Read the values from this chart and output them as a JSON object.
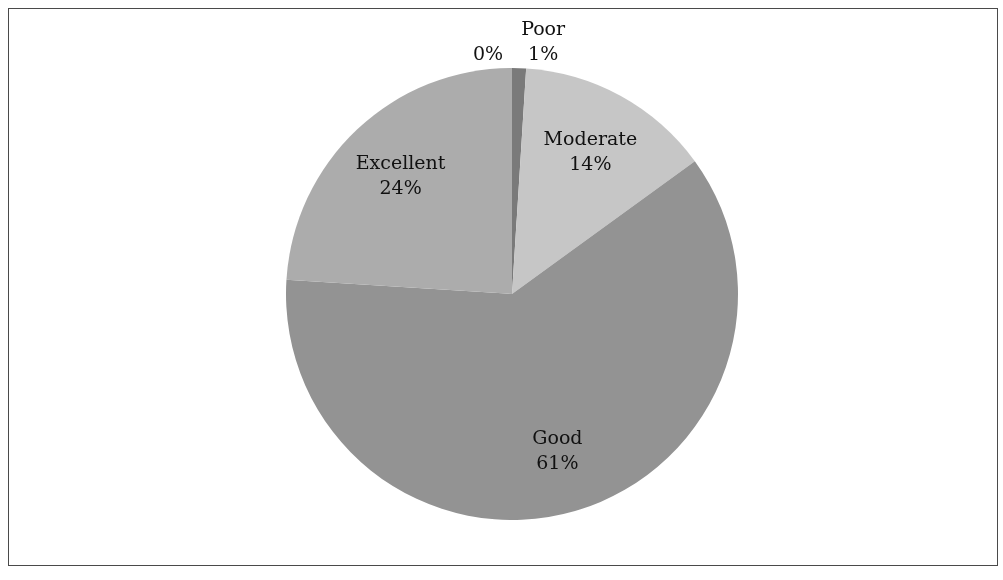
{
  "chart_data": {
    "type": "pie",
    "categories": [
      "Poor",
      "Moderate",
      "Good",
      "Excellent",
      null
    ],
    "values": [
      1,
      14,
      61,
      24,
      0
    ],
    "value_labels": [
      "1%",
      "14%",
      "61%",
      "24%",
      "0%"
    ],
    "colors": [
      "#7a7a7a",
      "#c6c6c6",
      "#939393",
      "#acacac",
      "#b4b4b4"
    ]
  }
}
